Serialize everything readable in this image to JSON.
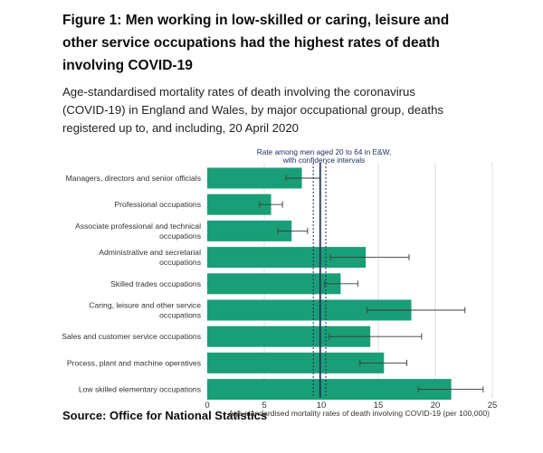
{
  "figure": {
    "title": "Figure 1: Men working in low-skilled or caring, leisure and other service occupations had the highest rates of death involving COVID-19",
    "subtitle": "Age-standardised mortality rates of death involving the coronavirus (COVID-19) in England and Wales, by major occupational group, deaths registered up to, and including, 20 April 2020",
    "source": "Source: Office for National Statistics"
  },
  "chart_data": {
    "type": "bar",
    "orientation": "horizontal",
    "xlabel": "Age standardised mortality rates of death involving COVID-19 (per 100,000)",
    "xlim": [
      0,
      25
    ],
    "xticks": [
      "0",
      "5",
      "10",
      "15",
      "20",
      "25"
    ],
    "grid": true,
    "bar_color": "#1a9e77",
    "reference_line": {
      "label_lines": [
        "Rate among men aged 20 to 64 in E&W,",
        "with confidence intervals"
      ],
      "value": 9.9,
      "ci": [
        9.3,
        10.4
      ],
      "color": "#1d2b5c"
    },
    "categories": [
      [
        "Managers, directors and senior officials"
      ],
      [
        "Professional occupations"
      ],
      [
        "Associate professional and technical",
        "occupations"
      ],
      [
        "Administrative and secretarial",
        "occupations"
      ],
      [
        "Skilled trades occupations"
      ],
      [
        "Caring, leisure and other service",
        "occupations"
      ],
      [
        "Sales and customer service occupations"
      ],
      [
        "Process, plant and machine operatives"
      ],
      [
        "Low skilled elementary occupations"
      ]
    ],
    "values": [
      8.3,
      5.6,
      7.4,
      13.9,
      11.7,
      17.9,
      14.3,
      15.5,
      21.4
    ],
    "ci_low": [
      6.9,
      4.6,
      6.2,
      10.8,
      10.3,
      14.0,
      10.7,
      13.4,
      18.5
    ],
    "ci_high": [
      9.9,
      6.6,
      8.8,
      17.7,
      13.2,
      22.6,
      18.8,
      17.5,
      24.2
    ]
  }
}
